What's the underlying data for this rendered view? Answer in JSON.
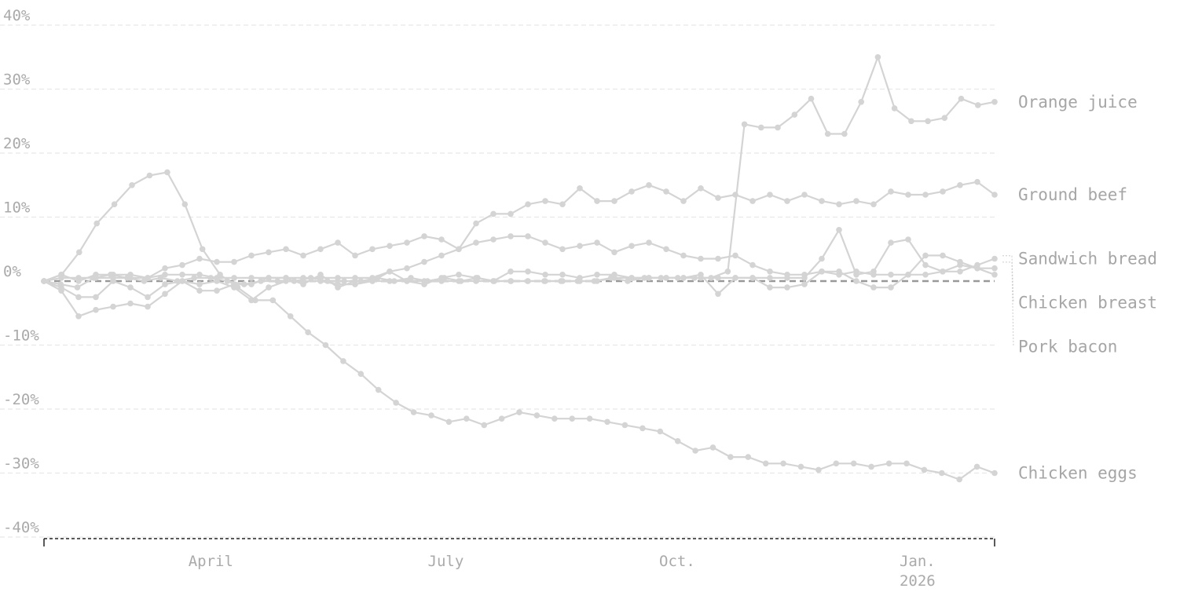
{
  "chart_data": {
    "type": "line",
    "y_unit": "%",
    "ylim": [
      -40,
      40
    ],
    "yticks": [
      40,
      30,
      20,
      10,
      0,
      -10,
      -20,
      -30,
      -40
    ],
    "ytick_labels": [
      "40%",
      "30%",
      "20%",
      "10%",
      "0%",
      "-10%",
      "-20%",
      "-30%",
      "-40%"
    ],
    "x_start": 0,
    "x_end": 53,
    "x_ticks": [
      {
        "pos": 9.3,
        "label": "April",
        "label2": ""
      },
      {
        "pos": 22.4,
        "label": "July",
        "label2": ""
      },
      {
        "pos": 35.3,
        "label": "Oct.",
        "label2": ""
      },
      {
        "pos": 48.7,
        "label": "Jan.",
        "label2": "2026"
      }
    ],
    "baseline": 0,
    "grid": "horizontal",
    "color": "#d4d4d4",
    "series": [
      {
        "name": "Orange juice",
        "label_value": 28,
        "values": [
          0,
          -0.5,
          -1,
          0.5,
          1,
          0.5,
          0,
          0.5,
          0,
          0.5,
          0.5,
          0,
          -0.5,
          0,
          0,
          0,
          0.5,
          0,
          0,
          0,
          0.5,
          0,
          0.5,
          0,
          0.5,
          0,
          0.5,
          0,
          0,
          0,
          0,
          0,
          0,
          0,
          0.5,
          0,
          0.5,
          0.5,
          0.5,
          0.5,
          0.5,
          1.5,
          24.5,
          24,
          24,
          26,
          28.5,
          23,
          23,
          28,
          35,
          27,
          25,
          25,
          25.5,
          28.5,
          27.5,
          28
        ]
      },
      {
        "name": "Ground beef",
        "label_value": 13.5,
        "values": [
          0,
          1,
          0,
          1,
          1,
          1,
          0.5,
          2,
          2.5,
          3.5,
          3,
          3,
          4,
          4.5,
          5,
          4,
          5,
          6,
          4,
          5,
          5.5,
          6,
          7,
          6.5,
          5,
          9,
          10.5,
          10.5,
          12,
          12.5,
          12,
          14.5,
          12.5,
          12.5,
          14,
          15,
          14,
          12.5,
          14.5,
          13,
          13.5,
          12.5,
          13.5,
          12.5,
          13.5,
          12.5,
          12,
          12.5,
          12,
          14,
          13.5,
          13.5,
          14,
          15,
          15.5,
          13.5
        ]
      },
      {
        "name": "Sandwich bread",
        "label_value": 3.5,
        "values": [
          0,
          0.5,
          0.5,
          0.5,
          0.5,
          0.5,
          0.5,
          1,
          1,
          1,
          0.5,
          0.5,
          0.5,
          0.5,
          0.5,
          0.5,
          0.5,
          0.5,
          0.5,
          0.5,
          1.5,
          2,
          3,
          4,
          5,
          6,
          6.5,
          7,
          7,
          6,
          5,
          5.5,
          6,
          4.5,
          5.5,
          6,
          5,
          4,
          3.5,
          3.5,
          4,
          2.5,
          1.5,
          1,
          1,
          1.5,
          1,
          1.5,
          1,
          1,
          1,
          1,
          1.5,
          1.5,
          2.5,
          3.5
        ]
      },
      {
        "name": "Chicken breast",
        "label_value": 2,
        "values": [
          0,
          -1,
          -2.5,
          -2.5,
          0,
          -1,
          -2.5,
          -0.5,
          0,
          -0.5,
          0,
          -1,
          -3,
          -1,
          0,
          0,
          0,
          -0.5,
          -0.5,
          0,
          0,
          0,
          0,
          0,
          0,
          0,
          0,
          0,
          0,
          0,
          0,
          0,
          0,
          0.5,
          0.5,
          0.5,
          0.5,
          0.5,
          1,
          -2,
          0.5,
          0.5,
          -1,
          -1,
          -0.5,
          1.5,
          1.5,
          0,
          -1,
          -1,
          1,
          4,
          4,
          3,
          2,
          2
        ]
      },
      {
        "name": "Pork bacon",
        "label_value": 1,
        "values": [
          0,
          -1.5,
          -5.5,
          -4.5,
          -4,
          -3.5,
          -4,
          -2,
          0,
          -1.5,
          -1.5,
          -0.5,
          -0.5,
          0.5,
          0.5,
          -0.5,
          1,
          -1,
          0,
          0,
          1.5,
          0,
          -0.5,
          0.5,
          1,
          0.5,
          0,
          1.5,
          1.5,
          1,
          1,
          0.5,
          1,
          1,
          0.5,
          0.5,
          0.5,
          0.5,
          0.5,
          0.5,
          0.5,
          0.5,
          0.5,
          0.5,
          0.5,
          3.5,
          8,
          1,
          1.5,
          6,
          6.5,
          2.5,
          1.5,
          2.5,
          2,
          1
        ]
      },
      {
        "name": "Chicken eggs",
        "label_value": -30,
        "values": [
          0,
          1,
          4.5,
          9,
          12,
          15,
          16.5,
          17,
          12,
          5,
          1,
          -1,
          -3,
          -3,
          -5.5,
          -8,
          -10,
          -12.5,
          -14.5,
          -17,
          -19,
          -20.5,
          -21,
          -22,
          -21.5,
          -22.5,
          -21.5,
          -20.5,
          -21,
          -21.5,
          -21.5,
          -21.5,
          -22,
          -22.5,
          -23,
          -23.5,
          -25,
          -26.5,
          -26,
          -27.5,
          -27.5,
          -28.5,
          -28.5,
          -29,
          -29.5,
          -28.5,
          -28.5,
          -29,
          -28.5,
          -28.5,
          -29.5,
          -30,
          -31,
          -29,
          -30
        ]
      }
    ]
  }
}
